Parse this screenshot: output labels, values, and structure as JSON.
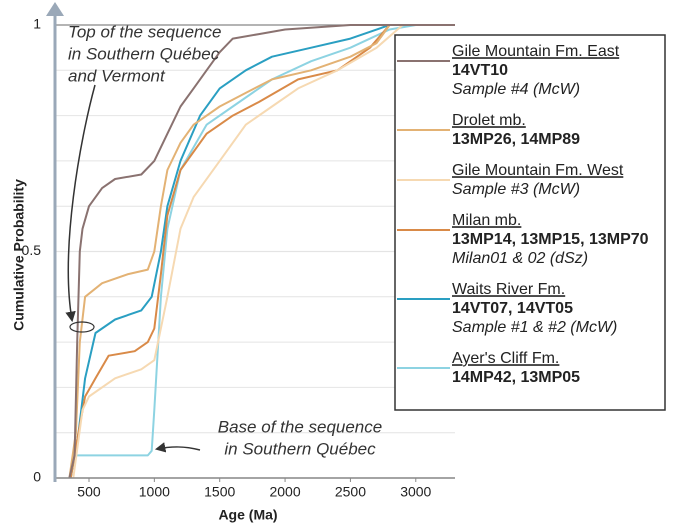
{
  "chart_data": {
    "type": "line",
    "x_label": "Age (Ma)",
    "y_label": "Cumulative Probability",
    "xlim": [
      240,
      3300
    ],
    "ylim": [
      0,
      1
    ],
    "xticks": [
      500,
      1000,
      1500,
      2000,
      2500,
      3000
    ],
    "yticks": [
      0,
      0.5,
      1
    ],
    "minor_yticks": [
      0.1,
      0.2,
      0.3,
      0.4,
      0.6,
      0.7,
      0.8,
      0.9
    ],
    "grid": true,
    "annotations": [
      {
        "lines": [
          "Top of the sequence",
          "in Southern Québec",
          "and Vermont"
        ]
      },
      {
        "lines": [
          "Base of the sequence",
          "in Southern Québec"
        ]
      }
    ],
    "series": [
      {
        "name": "Gile Mountain Fm. East",
        "samples": "14VT10",
        "note": "Sample #4 (McW)",
        "color": "#8a7270",
        "x": [
          350,
          390,
          410,
          430,
          450,
          500,
          600,
          700,
          900,
          1000,
          1100,
          1200,
          1300,
          1400,
          1500,
          1600,
          1800,
          2000,
          2500,
          3300
        ],
        "values": [
          0,
          0.05,
          0.3,
          0.5,
          0.55,
          0.6,
          0.64,
          0.66,
          0.67,
          0.7,
          0.76,
          0.82,
          0.86,
          0.9,
          0.94,
          0.97,
          0.98,
          0.99,
          1,
          1
        ]
      },
      {
        "name": "Drolet mb.",
        "samples": "13MP26, 14MP89",
        "color": "#e3b274",
        "x": [
          350,
          400,
          430,
          470,
          600,
          800,
          950,
          1000,
          1050,
          1100,
          1200,
          1300,
          1500,
          1700,
          1900,
          2200,
          2500,
          2700,
          2800,
          3300
        ],
        "values": [
          0,
          0.1,
          0.3,
          0.4,
          0.43,
          0.45,
          0.46,
          0.5,
          0.6,
          0.68,
          0.74,
          0.78,
          0.82,
          0.85,
          0.88,
          0.9,
          0.93,
          0.96,
          1,
          1
        ]
      },
      {
        "name": "Gile Mountain Fm. West",
        "note": "Sample #3 (McW)",
        "color": "#f6d9b2",
        "x": [
          380,
          450,
          500,
          700,
          900,
          1000,
          1100,
          1200,
          1300,
          1500,
          1700,
          1900,
          2100,
          2400,
          2700,
          2900,
          3300
        ],
        "values": [
          0,
          0.15,
          0.18,
          0.22,
          0.24,
          0.26,
          0.4,
          0.55,
          0.62,
          0.7,
          0.78,
          0.82,
          0.86,
          0.9,
          0.95,
          1,
          1
        ]
      },
      {
        "name": "Milan mb.",
        "samples": "13MP14, 13MP15, 13MP70",
        "note": "Milan01 & 02 (dSz)",
        "color": "#d98a48",
        "x": [
          360,
          420,
          470,
          550,
          650,
          850,
          950,
          1000,
          1050,
          1100,
          1200,
          1400,
          1600,
          1800,
          2100,
          2400,
          2650,
          2800,
          3300
        ],
        "values": [
          0,
          0.1,
          0.18,
          0.22,
          0.27,
          0.28,
          0.3,
          0.33,
          0.45,
          0.58,
          0.68,
          0.76,
          0.8,
          0.83,
          0.88,
          0.9,
          0.95,
          1,
          1
        ]
      },
      {
        "name": "Waits River Fm.",
        "samples": "14VT07, 14VT05",
        "note": "Sample #1 & #2 (McW)",
        "color": "#2a9fc2",
        "x": [
          360,
          420,
          470,
          550,
          700,
          900,
          980,
          1050,
          1100,
          1200,
          1350,
          1500,
          1700,
          1900,
          2200,
          2500,
          2800,
          3300
        ],
        "values": [
          0,
          0.1,
          0.22,
          0.32,
          0.35,
          0.37,
          0.4,
          0.5,
          0.6,
          0.7,
          0.8,
          0.86,
          0.9,
          0.93,
          0.95,
          0.97,
          1,
          1
        ]
      },
      {
        "name": "Ayer's Cliff Fm.",
        "samples": "14MP42, 13MP05",
        "color": "#8dd3e2",
        "x": [
          350,
          400,
          950,
          980,
          1000,
          1050,
          1100,
          1200,
          1400,
          1600,
          1900,
          2200,
          2500,
          2800,
          3000,
          3300
        ],
        "values": [
          0,
          0.05,
          0.05,
          0.06,
          0.15,
          0.4,
          0.55,
          0.68,
          0.78,
          0.82,
          0.88,
          0.92,
          0.95,
          0.99,
          1,
          1
        ]
      }
    ]
  }
}
